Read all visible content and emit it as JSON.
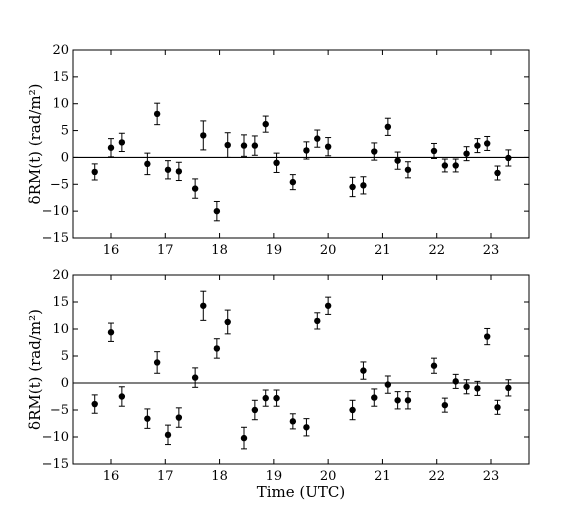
{
  "chart_data": [
    {
      "type": "scatter",
      "xlabel": "",
      "ylabel": "δRM(t)  (rad/m²)",
      "xlim": [
        15.3,
        23.7
      ],
      "ylim": [
        -15,
        20
      ],
      "xticks": [
        "16",
        "17",
        "18",
        "19",
        "20",
        "21",
        "22",
        "23"
      ],
      "yticks": [
        "−15",
        "−10",
        "−5",
        "0",
        "5",
        "10",
        "15",
        "20"
      ],
      "zero_line": true,
      "error_bars": true,
      "x": [
        15.7,
        16.0,
        16.2,
        16.67,
        16.85,
        17.05,
        17.25,
        17.55,
        17.7,
        17.95,
        18.15,
        18.45,
        18.65,
        18.85,
        19.05,
        19.35,
        19.6,
        19.8,
        20.0,
        20.45,
        20.65,
        20.85,
        21.1,
        21.28,
        21.47,
        21.95,
        22.15,
        22.35,
        22.55,
        22.75,
        22.93,
        23.12,
        23.32
      ],
      "y": [
        -2.7,
        1.8,
        2.8,
        -1.2,
        8.1,
        -2.3,
        -2.6,
        -5.8,
        4.1,
        -10.0,
        2.3,
        2.2,
        2.2,
        6.2,
        -1.0,
        -4.6,
        1.3,
        3.5,
        2.0,
        -5.5,
        -5.2,
        1.1,
        5.7,
        -0.6,
        -2.3,
        1.2,
        -1.5,
        -1.5,
        0.7,
        2.2,
        2.6,
        -2.9,
        -0.1
      ],
      "err": [
        1.5,
        1.7,
        1.7,
        2.0,
        2.0,
        1.7,
        1.7,
        1.8,
        2.7,
        1.8,
        2.3,
        2.0,
        1.8,
        1.5,
        1.8,
        1.4,
        1.6,
        1.6,
        1.7,
        1.8,
        1.6,
        1.6,
        1.6,
        1.6,
        1.5,
        1.4,
        1.2,
        1.2,
        1.3,
        1.3,
        1.3,
        1.3,
        1.5
      ]
    },
    {
      "type": "scatter",
      "xlabel": "Time (UTC)",
      "ylabel": "δRM(t)  (rad/m²)",
      "xlim": [
        15.3,
        23.7
      ],
      "ylim": [
        -15,
        20
      ],
      "xticks": [
        "16",
        "17",
        "18",
        "19",
        "20",
        "21",
        "22",
        "23"
      ],
      "yticks": [
        "−15",
        "−10",
        "−5",
        "0",
        "5",
        "10",
        "15",
        "20"
      ],
      "zero_line": true,
      "error_bars": true,
      "x": [
        15.7,
        16.0,
        16.2,
        16.67,
        16.85,
        17.05,
        17.25,
        17.55,
        17.7,
        17.95,
        18.15,
        18.45,
        18.65,
        18.85,
        19.05,
        19.35,
        19.6,
        19.8,
        20.0,
        20.45,
        20.65,
        20.85,
        21.1,
        21.28,
        21.47,
        21.95,
        22.15,
        22.35,
        22.55,
        22.75,
        22.93,
        23.12,
        23.32
      ],
      "y": [
        -3.9,
        9.4,
        -2.5,
        -6.6,
        3.8,
        -9.6,
        -6.4,
        1.0,
        14.3,
        6.4,
        11.3,
        -10.2,
        -5.0,
        -2.8,
        -2.8,
        -7.1,
        -8.2,
        11.5,
        14.3,
        -5.0,
        2.3,
        -2.7,
        -0.3,
        -3.2,
        -3.2,
        3.2,
        -4.1,
        0.3,
        -0.7,
        -1.0,
        8.6,
        -4.5,
        -0.9
      ],
      "err": [
        1.7,
        1.7,
        1.8,
        1.8,
        2.0,
        1.8,
        1.8,
        1.8,
        2.7,
        1.8,
        2.2,
        2.0,
        1.8,
        1.5,
        1.5,
        1.4,
        1.6,
        1.5,
        1.6,
        1.8,
        1.6,
        1.6,
        1.6,
        1.6,
        1.6,
        1.4,
        1.3,
        1.3,
        1.3,
        1.3,
        1.5,
        1.3,
        1.5
      ]
    }
  ]
}
